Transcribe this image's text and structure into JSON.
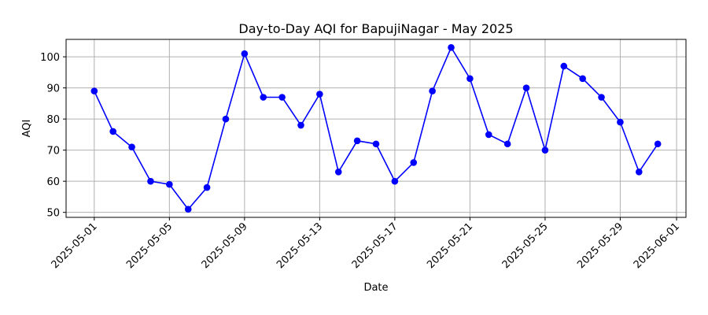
{
  "chart_data": {
    "type": "line",
    "title": "Day-to-Day AQI for BapujiNagar - May 2025",
    "xlabel": "Date",
    "ylabel": "AQI",
    "grid": true,
    "line_color": "#0000ff",
    "marker": "circle",
    "series": [
      {
        "name": "AQI",
        "x": [
          "2025-05-01",
          "2025-05-02",
          "2025-05-03",
          "2025-05-04",
          "2025-05-05",
          "2025-05-06",
          "2025-05-07",
          "2025-05-08",
          "2025-05-09",
          "2025-05-10",
          "2025-05-11",
          "2025-05-12",
          "2025-05-13",
          "2025-05-14",
          "2025-05-15",
          "2025-05-16",
          "2025-05-17",
          "2025-05-18",
          "2025-05-19",
          "2025-05-20",
          "2025-05-21",
          "2025-05-22",
          "2025-05-23",
          "2025-05-24",
          "2025-05-25",
          "2025-05-26",
          "2025-05-27",
          "2025-05-28",
          "2025-05-29",
          "2025-05-30",
          "2025-05-31"
        ],
        "values": [
          89,
          76,
          71,
          60,
          59,
          51,
          58,
          80,
          101,
          87,
          87,
          78,
          88,
          63,
          73,
          72,
          60,
          66,
          89,
          103,
          93,
          75,
          72,
          90,
          70,
          97,
          93,
          87,
          79,
          63,
          72
        ]
      }
    ],
    "xlim_days": [
      -1.5,
      31.5
    ],
    "ylim": [
      48.4,
      105.6
    ],
    "x_ticks": [
      {
        "day": 0,
        "label": "2025-05-01"
      },
      {
        "day": 4,
        "label": "2025-05-05"
      },
      {
        "day": 8,
        "label": "2025-05-09"
      },
      {
        "day": 12,
        "label": "2025-05-13"
      },
      {
        "day": 16,
        "label": "2025-05-17"
      },
      {
        "day": 20,
        "label": "2025-05-21"
      },
      {
        "day": 24,
        "label": "2025-05-25"
      },
      {
        "day": 28,
        "label": "2025-05-29"
      },
      {
        "day": 31,
        "label": "2025-06-01"
      }
    ],
    "y_ticks": [
      50,
      60,
      70,
      80,
      90,
      100
    ]
  }
}
